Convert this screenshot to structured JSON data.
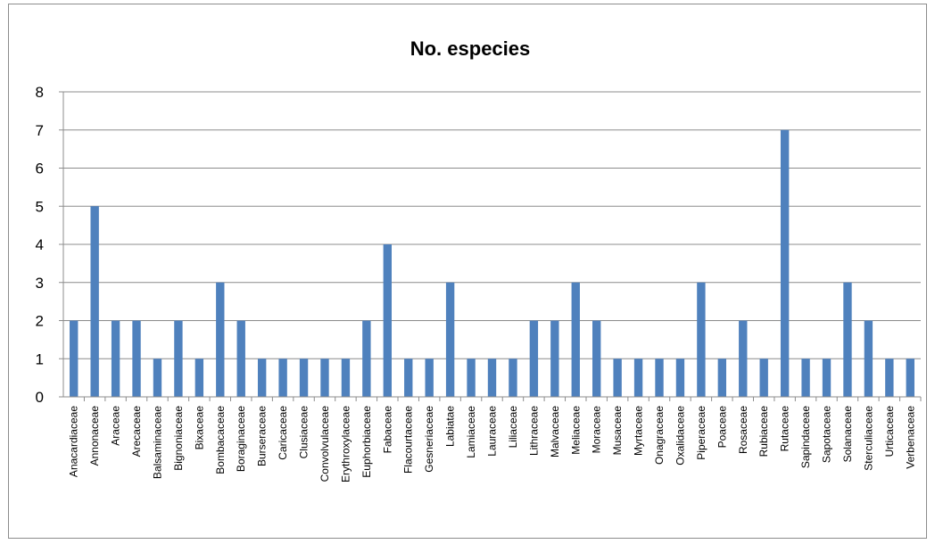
{
  "chart_data": {
    "type": "bar",
    "title": "No. especies",
    "xlabel": "",
    "ylabel": "",
    "ylim": [
      0,
      8
    ],
    "yticks": [
      "0",
      "1",
      "2",
      "3",
      "4",
      "5",
      "6",
      "7",
      "8"
    ],
    "grid": true,
    "legend": "none",
    "bar_color": "#4f81bd",
    "categories": [
      "Anacardiaceae",
      "Annonaceae",
      "Araceae",
      "Arecaceae",
      "Balsaminaceae",
      "Bignoniaceae",
      "Bixaceae",
      "Bombacaceae",
      "Boraginaceae",
      "Burseraceae",
      "Caricaceae",
      "Clusiaceae",
      "Convolvulaceae",
      "Erythroxylaceae",
      "Euphorbiaceae",
      "Fabaceae",
      "Flacourtaceae",
      "Gesneriaceae",
      "Labiatae",
      "Lamiaceae",
      "Lauraceae",
      "Liliaceae",
      "Lithraceae",
      "Malvaceae",
      "Meliaceae",
      "Moraceae",
      "Musaceae",
      "Myrtaceae",
      "Onagraceae",
      "Oxalidaceae",
      "Piperaceae",
      "Poaceae",
      "Rosaceae",
      "Rubiaceae",
      "Rutaceae",
      "Sapindaceae",
      "Sapotaceae",
      "Solanaceae",
      "Sterculiaceae",
      "Urticaceae",
      "Verbenaceae"
    ],
    "values": [
      2,
      5,
      2,
      2,
      1,
      2,
      1,
      3,
      2,
      1,
      1,
      1,
      1,
      1,
      2,
      4,
      1,
      1,
      3,
      1,
      1,
      1,
      2,
      2,
      3,
      2,
      1,
      1,
      1,
      1,
      3,
      1,
      2,
      1,
      7,
      1,
      1,
      3,
      2,
      1,
      1
    ]
  }
}
